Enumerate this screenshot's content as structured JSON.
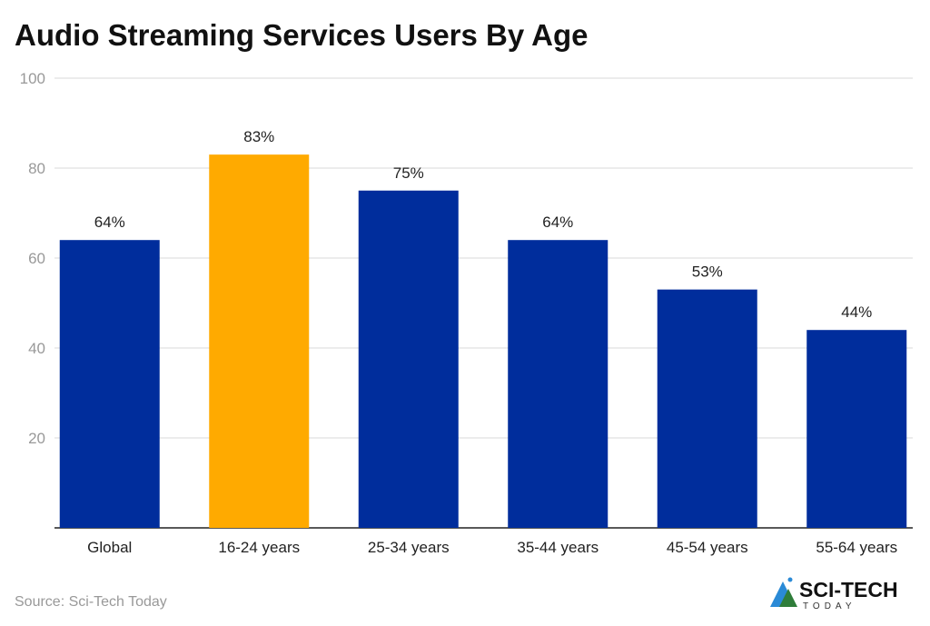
{
  "chart_data": {
    "type": "bar",
    "title": "Audio Streaming Services Users By Age",
    "categories": [
      "Global",
      "16-24 years",
      "25-34 years",
      "35-44 years",
      "45-54 years",
      "55-64 years"
    ],
    "values": [
      64,
      83,
      75,
      64,
      53,
      44
    ],
    "data_labels": [
      "64%",
      "83%",
      "75%",
      "64%",
      "53%",
      "44%"
    ],
    "ylim": [
      0,
      100
    ],
    "yticks": [
      20,
      40,
      60,
      80,
      100
    ],
    "grid": true,
    "xlabel": "",
    "ylabel": "",
    "colors": {
      "default": "#002d9c",
      "highlight": "#ffaa00",
      "highlight_index": 1
    }
  },
  "source": "Source: Sci-Tech Today",
  "logo": {
    "line1": "SCI-TECH",
    "line2": "TODAY"
  }
}
